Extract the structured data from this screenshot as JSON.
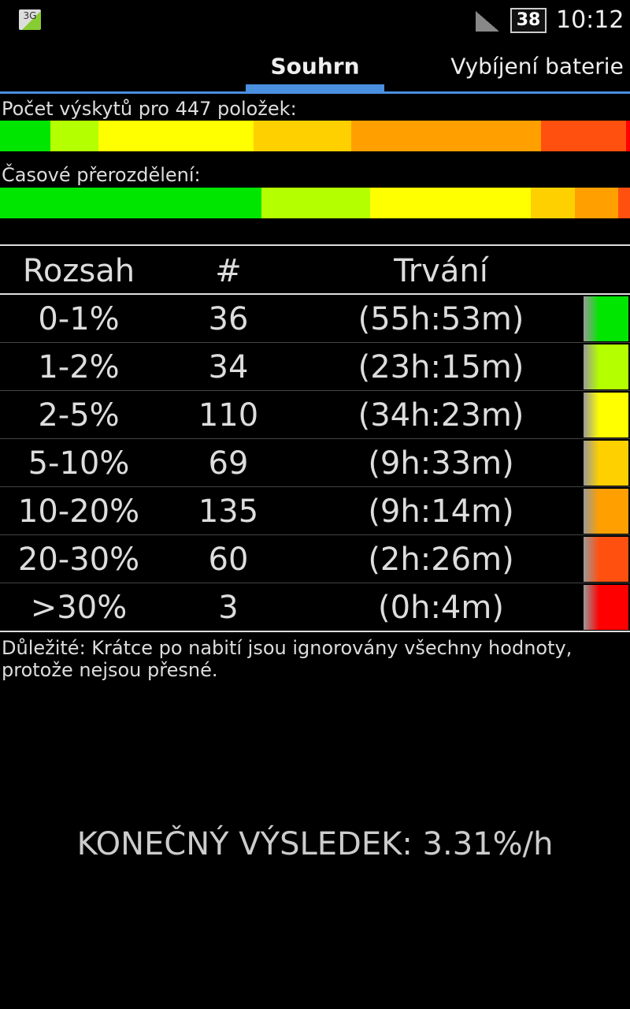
{
  "status_bar": {
    "network": "3G",
    "battery": "38",
    "time": "10:12"
  },
  "tabs": [
    {
      "label": "Souhrn",
      "selected": true
    },
    {
      "label": "Vybíjení baterie",
      "selected": false
    }
  ],
  "count_bar": {
    "label": "Počet výskytů pro 447 položek:"
  },
  "time_bar": {
    "label": "Časové přerozdělení:"
  },
  "table": {
    "headers": [
      "Rozsah",
      "#",
      "Trvání"
    ],
    "rows": [
      {
        "range": "0-1%",
        "count": 36,
        "duration": "(55h:53m)",
        "color": "#00e600"
      },
      {
        "range": "1-2%",
        "count": 34,
        "duration": "(23h:15m)",
        "color": "#b4ff00"
      },
      {
        "range": "2-5%",
        "count": 110,
        "duration": "(34h:23m)",
        "color": "#ffff00"
      },
      {
        "range": "5-10%",
        "count": 69,
        "duration": "(9h:33m)",
        "color": "#ffd000"
      },
      {
        "range": "10-20%",
        "count": 135,
        "duration": "(9h:14m)",
        "color": "#ffa000"
      },
      {
        "range": "20-30%",
        "count": 60,
        "duration": "(2h:26m)",
        "color": "#ff5010"
      },
      {
        "range": ">30%",
        "count": 3,
        "duration": "(0h:4m)",
        "color": "#ff0000"
      }
    ]
  },
  "note": "Důležité: Krátce po nabití jsou ignorovány všechny hodnoty, protože nejsou přesné.",
  "result": "KONEČNÝ VÝSLEDEK: 3.31%/h"
}
